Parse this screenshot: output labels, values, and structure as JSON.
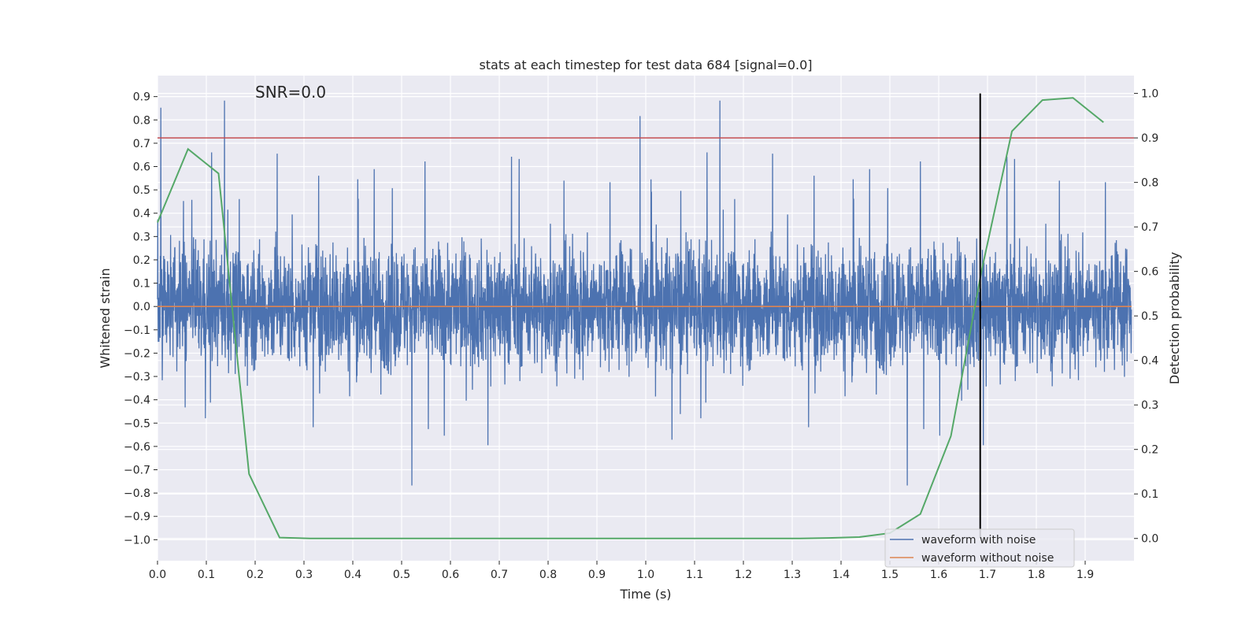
{
  "chart_data": {
    "type": "line",
    "title": "stats at each timestep for test data 684 [signal=0.0]",
    "annotation": "SNR=0.0",
    "xlabel": "Time (s)",
    "ylabel_left": "Whitened strain",
    "ylabel_right": "Detection probability",
    "xlim": [
      0.0,
      2.0
    ],
    "ylim_left": [
      -1.09,
      0.99
    ],
    "ylim_right": [
      -0.05,
      1.04
    ],
    "xticks": [
      0.0,
      0.1,
      0.2,
      0.3,
      0.4,
      0.5,
      0.6,
      0.7,
      0.8,
      0.9,
      1.0,
      1.1,
      1.2,
      1.3,
      1.4,
      1.5,
      1.6,
      1.7,
      1.8,
      1.9
    ],
    "xtick_labels": [
      "0.0",
      "0.1",
      "0.2",
      "0.3",
      "0.4",
      "0.5",
      "0.6",
      "0.7",
      "0.8",
      "0.9",
      "1.0",
      "1.1",
      "1.2",
      "1.3",
      "1.4",
      "1.5",
      "1.6",
      "1.7",
      "1.8",
      "1.9"
    ],
    "yticks_left": [
      -1.0,
      -0.9,
      -0.8,
      -0.7,
      -0.6,
      -0.5,
      -0.4,
      -0.3,
      -0.2,
      -0.1,
      0.0,
      0.1,
      0.2,
      0.3,
      0.4,
      0.5,
      0.6,
      0.7,
      0.8,
      0.9
    ],
    "ytick_labels_left": [
      "−1.0",
      "−0.9",
      "−0.8",
      "−0.7",
      "−0.6",
      "−0.5",
      "−0.4",
      "−0.3",
      "−0.2",
      "−0.1",
      "0.0",
      "0.1",
      "0.2",
      "0.3",
      "0.4",
      "0.5",
      "0.6",
      "0.7",
      "0.8",
      "0.9"
    ],
    "yticks_right": [
      0.0,
      0.1,
      0.2,
      0.3,
      0.4,
      0.5,
      0.6,
      0.7,
      0.8,
      0.9,
      1.0
    ],
    "ytick_labels_right": [
      "0.0",
      "0.1",
      "0.2",
      "0.3",
      "0.4",
      "0.5",
      "0.6",
      "0.7",
      "0.8",
      "0.9",
      "1.0"
    ],
    "grid": true,
    "legend_position": "lower-right",
    "threshold": {
      "axis": "right",
      "value": 0.9,
      "color": "#c44e52"
    },
    "marker_time": {
      "x": 1.685,
      "color": "#000000"
    },
    "series": [
      {
        "name": "waveform with noise",
        "axis": "left",
        "color": "#4c72b0",
        "sample_rate": 2048,
        "duration": 1.995,
        "amplitude_min": -1.0,
        "amplitude_max": 0.89
      },
      {
        "name": "waveform without noise",
        "axis": "left",
        "color": "#dd8452",
        "x": [
          0.0,
          1.995
        ],
        "y": [
          0.0,
          0.0
        ]
      },
      {
        "axis": "right",
        "color": "#55a868",
        "x": [
          0.0,
          0.0625,
          0.125,
          0.1875,
          0.25,
          0.3125,
          0.375,
          0.4375,
          0.5,
          0.5625,
          0.625,
          0.6875,
          0.75,
          0.8125,
          0.875,
          0.9375,
          1.0,
          1.0625,
          1.125,
          1.1875,
          1.25,
          1.3125,
          1.375,
          1.4375,
          1.5,
          1.5625,
          1.625,
          1.6875,
          1.75,
          1.8125,
          1.875,
          1.9375
        ],
        "y": [
          0.71,
          0.875,
          0.82,
          0.145,
          0.002,
          0.0,
          0.0,
          0.0,
          0.0,
          0.0,
          0.0,
          0.0,
          0.0,
          0.0,
          0.0,
          0.0,
          0.0,
          0.0,
          0.0,
          0.0,
          0.0,
          0.0,
          0.001,
          0.003,
          0.012,
          0.055,
          0.23,
          0.6,
          0.915,
          0.985,
          0.99,
          0.935
        ]
      }
    ]
  }
}
